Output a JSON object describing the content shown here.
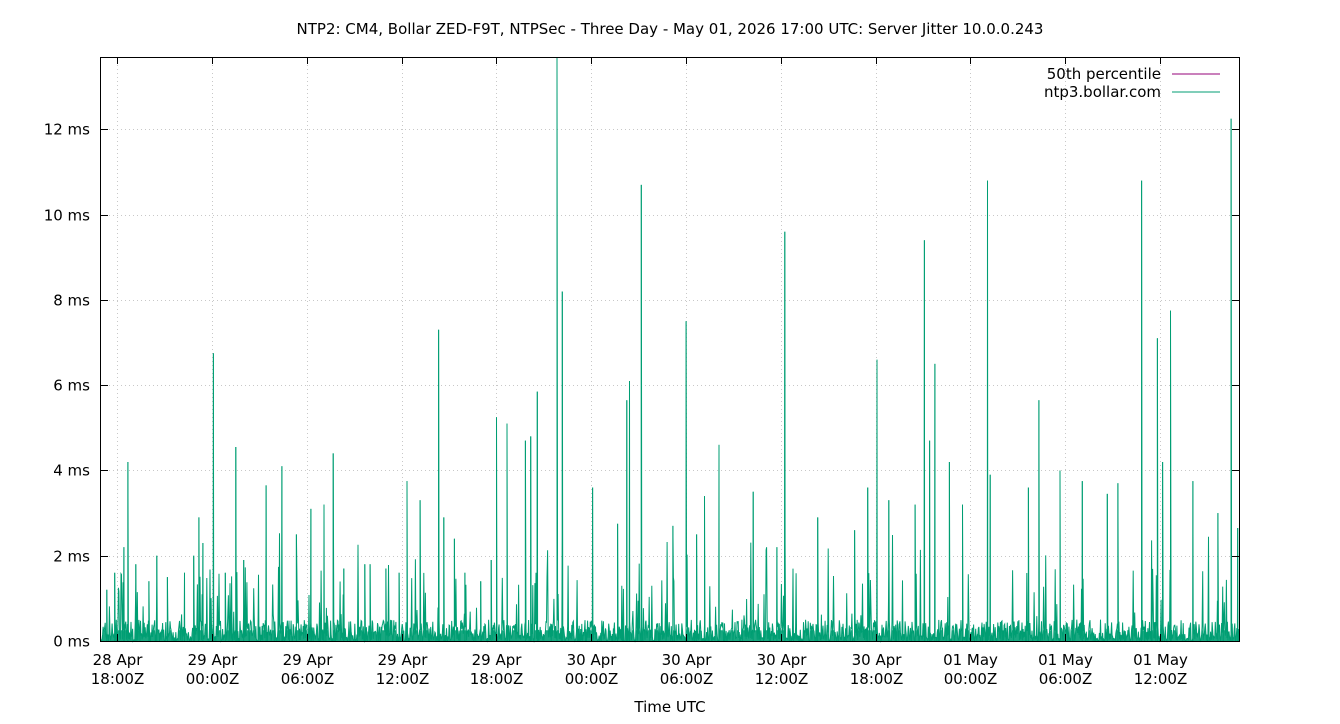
{
  "chart_data": {
    "type": "line",
    "title": "NTP2: CM4, Bollar ZED-F9T, NTPSec - Three Day - May 01, 2026 17:00 UTC: Server Jitter 10.0.0.243",
    "xlabel": "Time UTC",
    "ylabel": "",
    "ylim": [
      0,
      13.7
    ],
    "xlim": [
      "2026-04-28T16:58Z",
      "2026-05-01T17:00Z"
    ],
    "y_ticks": [
      {
        "value": 0,
        "label": "0 ms"
      },
      {
        "value": 2,
        "label": "2 ms"
      },
      {
        "value": 4,
        "label": "4 ms"
      },
      {
        "value": 6,
        "label": "6 ms"
      },
      {
        "value": 8,
        "label": "8 ms"
      },
      {
        "value": 10,
        "label": "10 ms"
      },
      {
        "value": 12,
        "label": "12 ms"
      }
    ],
    "x_ticks": [
      {
        "value": "2026-04-28T18:00Z",
        "line1": "28 Apr",
        "line2": "18:00Z"
      },
      {
        "value": "2026-04-29T00:00Z",
        "line1": "29 Apr",
        "line2": "00:00Z"
      },
      {
        "value": "2026-04-29T06:00Z",
        "line1": "29 Apr",
        "line2": "06:00Z"
      },
      {
        "value": "2026-04-29T12:00Z",
        "line1": "29 Apr",
        "line2": "12:00Z"
      },
      {
        "value": "2026-04-29T18:00Z",
        "line1": "29 Apr",
        "line2": "18:00Z"
      },
      {
        "value": "2026-04-30T00:00Z",
        "line1": "30 Apr",
        "line2": "00:00Z"
      },
      {
        "value": "2026-04-30T06:00Z",
        "line1": "30 Apr",
        "line2": "06:00Z"
      },
      {
        "value": "2026-04-30T12:00Z",
        "line1": "30 Apr",
        "line2": "12:00Z"
      },
      {
        "value": "2026-04-30T18:00Z",
        "line1": "30 Apr",
        "line2": "18:00Z"
      },
      {
        "value": "2026-05-01T00:00Z",
        "line1": "01 May",
        "line2": "00:00Z"
      },
      {
        "value": "2026-05-01T06:00Z",
        "line1": "01 May",
        "line2": "06:00Z"
      },
      {
        "value": "2026-05-01T12:00Z",
        "line1": "01 May",
        "line2": "12:00Z"
      }
    ],
    "grid": true,
    "legend_position": "top-right",
    "series": [
      {
        "name": "50th percentile",
        "color": "#94007a",
        "values": []
      },
      {
        "name": "ntp3.bollar.com",
        "color": "#009e73",
        "baseline_noise_ms": [
          0,
          0.5
        ],
        "peaks": [
          [
            "2026-04-28T17:20Z",
            1.2
          ],
          [
            "2026-04-28T17:50Z",
            1.6
          ],
          [
            "2026-04-28T18:25Z",
            2.2
          ],
          [
            "2026-04-28T18:40Z",
            4.2
          ],
          [
            "2026-04-28T19:10Z",
            1.8
          ],
          [
            "2026-04-28T20:00Z",
            1.4
          ],
          [
            "2026-04-28T20:30Z",
            2.0
          ],
          [
            "2026-04-28T21:10Z",
            1.5
          ],
          [
            "2026-04-28T22:15Z",
            1.6
          ],
          [
            "2026-04-28T22:50Z",
            2.0
          ],
          [
            "2026-04-28T23:10Z",
            2.9
          ],
          [
            "2026-04-28T23:25Z",
            2.3
          ],
          [
            "2026-04-29T00:05Z",
            6.75
          ],
          [
            "2026-04-29T00:50Z",
            1.6
          ],
          [
            "2026-04-29T01:30Z",
            4.55
          ],
          [
            "2026-04-29T02:00Z",
            1.9
          ],
          [
            "2026-04-29T03:25Z",
            3.65
          ],
          [
            "2026-04-29T04:25Z",
            4.1
          ],
          [
            "2026-04-29T05:20Z",
            2.5
          ],
          [
            "2026-04-29T06:15Z",
            3.1
          ],
          [
            "2026-04-29T07:05Z",
            3.2
          ],
          [
            "2026-04-29T07:40Z",
            4.4
          ],
          [
            "2026-04-29T08:20Z",
            1.7
          ],
          [
            "2026-04-29T09:40Z",
            1.8
          ],
          [
            "2026-04-29T10:00Z",
            1.8
          ],
          [
            "2026-04-29T11:00Z",
            1.7
          ],
          [
            "2026-04-29T11:50Z",
            1.6
          ],
          [
            "2026-04-29T12:20Z",
            3.75
          ],
          [
            "2026-04-29T13:10Z",
            3.3
          ],
          [
            "2026-04-29T14:20Z",
            7.3
          ],
          [
            "2026-04-29T14:40Z",
            2.9
          ],
          [
            "2026-04-29T15:20Z",
            2.4
          ],
          [
            "2026-04-29T16:00Z",
            1.6
          ],
          [
            "2026-04-29T17:00Z",
            1.4
          ],
          [
            "2026-04-29T17:40Z",
            1.9
          ],
          [
            "2026-04-29T18:00Z",
            5.25
          ],
          [
            "2026-04-29T18:40Z",
            5.1
          ],
          [
            "2026-04-29T19:50Z",
            4.7
          ],
          [
            "2026-04-29T20:10Z",
            4.8
          ],
          [
            "2026-04-29T20:35Z",
            5.85
          ],
          [
            "2026-04-29T21:50Z",
            13.7
          ],
          [
            "2026-04-29T22:10Z",
            8.2
          ],
          [
            "2026-04-30T00:05Z",
            3.6
          ],
          [
            "2026-04-30T01:40Z",
            2.75
          ],
          [
            "2026-04-30T02:15Z",
            5.65
          ],
          [
            "2026-04-30T02:25Z",
            6.1
          ],
          [
            "2026-04-30T03:10Z",
            10.7
          ],
          [
            "2026-04-30T05:10Z",
            2.7
          ],
          [
            "2026-04-30T06:00Z",
            7.5
          ],
          [
            "2026-04-30T06:40Z",
            2.5
          ],
          [
            "2026-04-30T07:10Z",
            3.4
          ],
          [
            "2026-04-30T08:05Z",
            4.6
          ],
          [
            "2026-04-30T10:15Z",
            3.5
          ],
          [
            "2026-04-30T11:45Z",
            2.2
          ],
          [
            "2026-04-30T12:15Z",
            9.6
          ],
          [
            "2026-04-30T14:20Z",
            2.9
          ],
          [
            "2026-04-30T16:40Z",
            2.6
          ],
          [
            "2026-04-30T17:30Z",
            3.6
          ],
          [
            "2026-04-30T18:05Z",
            6.6
          ],
          [
            "2026-04-30T18:50Z",
            3.3
          ],
          [
            "2026-04-30T20:30Z",
            3.2
          ],
          [
            "2026-04-30T21:05Z",
            9.4
          ],
          [
            "2026-04-30T21:25Z",
            4.7
          ],
          [
            "2026-04-30T21:45Z",
            6.5
          ],
          [
            "2026-04-30T22:40Z",
            4.2
          ],
          [
            "2026-04-30T23:30Z",
            3.2
          ],
          [
            "2026-05-01T01:05Z",
            10.8
          ],
          [
            "2026-05-01T01:15Z",
            3.9
          ],
          [
            "2026-05-01T03:40Z",
            3.6
          ],
          [
            "2026-05-01T04:20Z",
            5.65
          ],
          [
            "2026-05-01T05:40Z",
            4.0
          ],
          [
            "2026-05-01T07:05Z",
            3.75
          ],
          [
            "2026-05-01T08:40Z",
            3.45
          ],
          [
            "2026-05-01T09:20Z",
            3.7
          ],
          [
            "2026-05-01T10:50Z",
            10.8
          ],
          [
            "2026-05-01T11:50Z",
            7.1
          ],
          [
            "2026-05-01T12:10Z",
            4.2
          ],
          [
            "2026-05-01T12:40Z",
            7.75
          ],
          [
            "2026-05-01T14:05Z",
            3.75
          ],
          [
            "2026-05-01T15:40Z",
            3.0
          ],
          [
            "2026-05-01T16:30Z",
            12.25
          ],
          [
            "2026-05-01T16:55Z",
            2.65
          ]
        ]
      }
    ]
  }
}
